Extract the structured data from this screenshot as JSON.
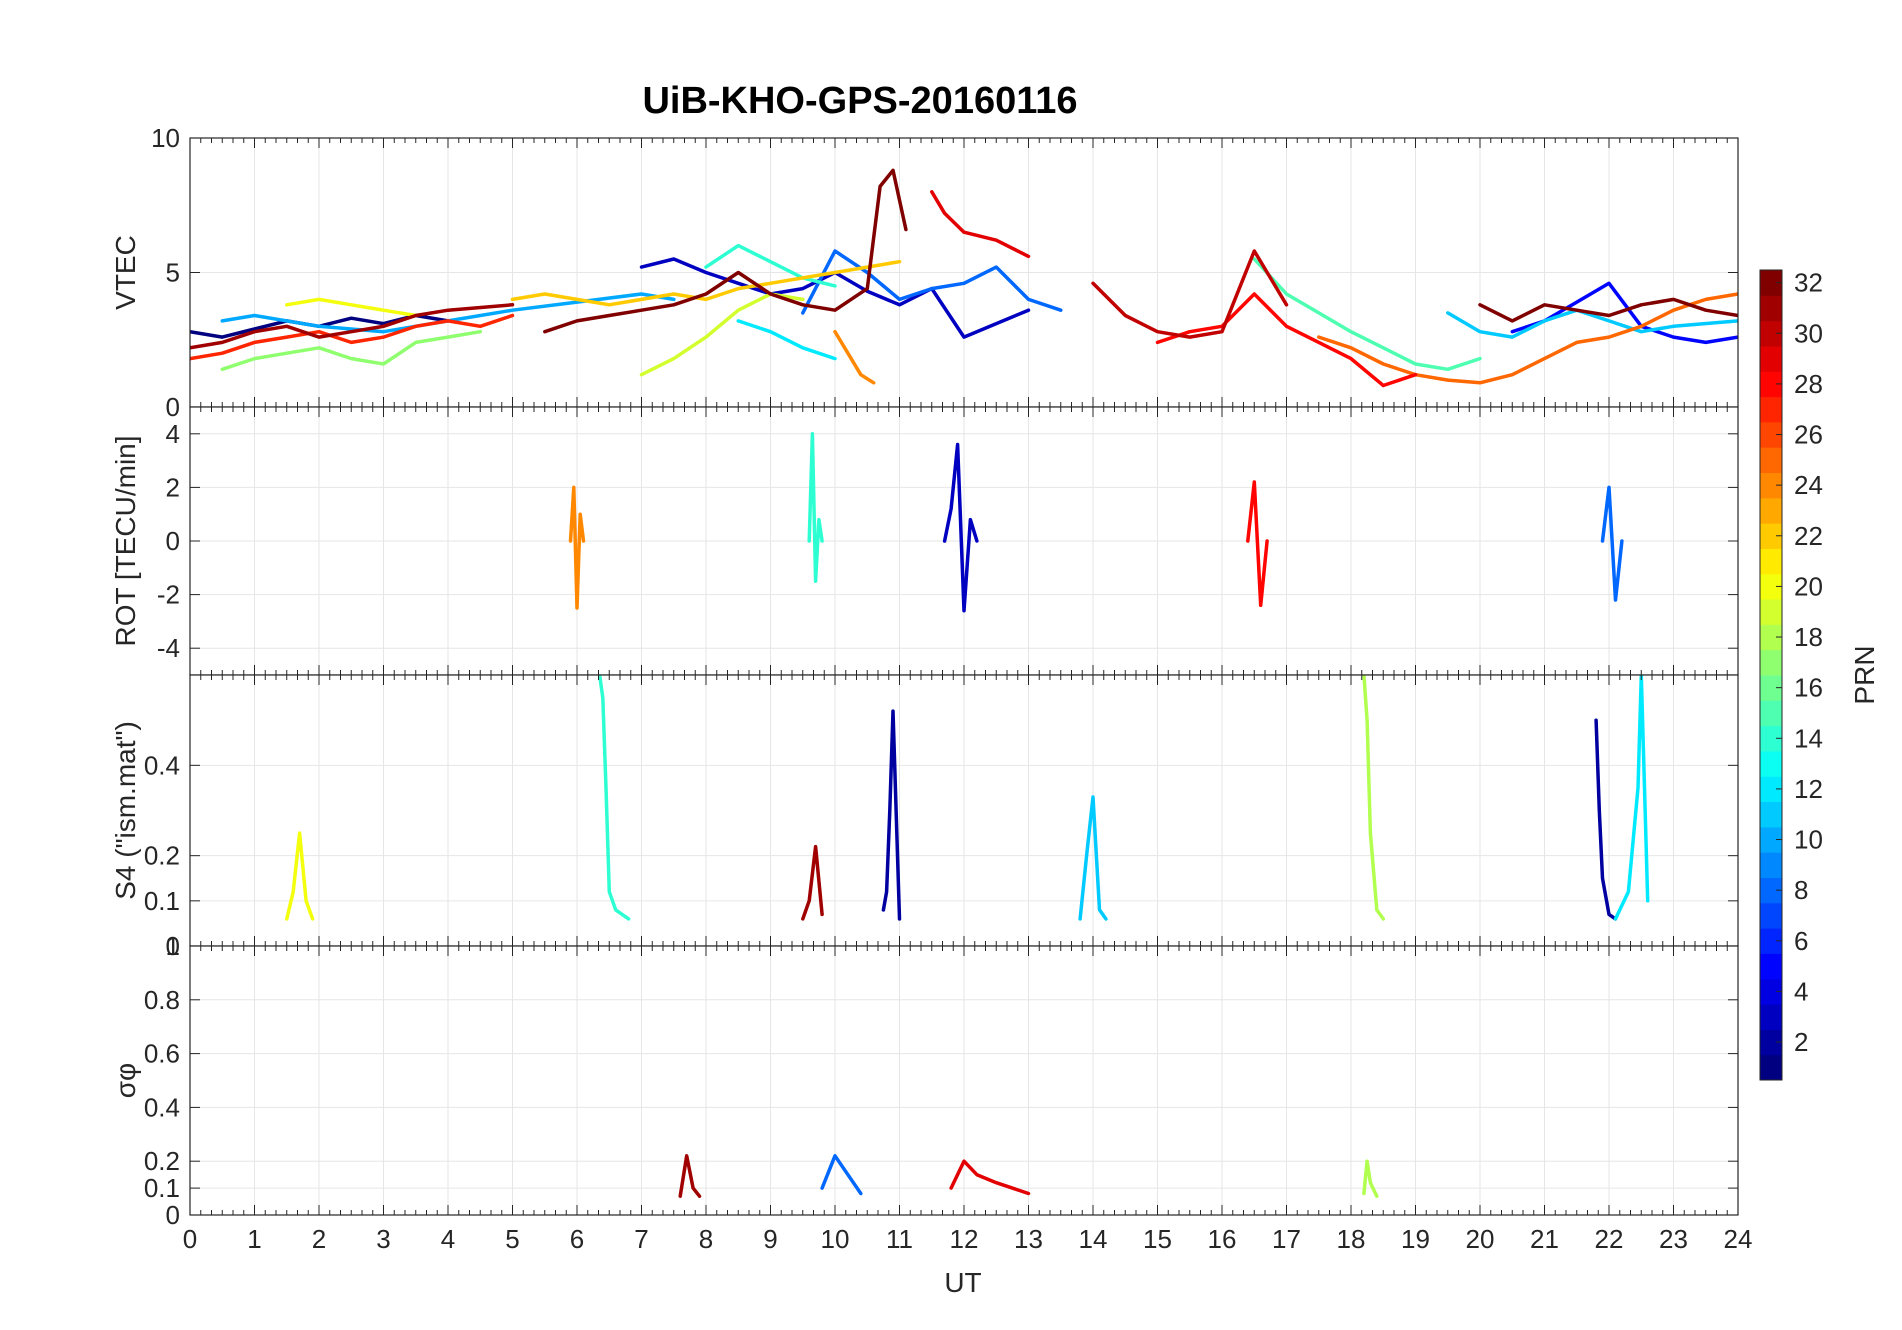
{
  "title": "UiB-KHO-GPS-20160116",
  "chart_data": {
    "type": "line",
    "title": "UiB-KHO-GPS-20160116",
    "xlabel": "UT",
    "x_ticks": [
      "0",
      "1",
      "2",
      "3",
      "4",
      "5",
      "6",
      "7",
      "8",
      "9",
      "10",
      "11",
      "12",
      "13",
      "14",
      "15",
      "16",
      "17",
      "18",
      "19",
      "20",
      "21",
      "22",
      "23",
      "24"
    ],
    "xlim": [
      0,
      24
    ],
    "grid": true,
    "colormap": "jet",
    "colorbar": {
      "label": "PRN",
      "range": [
        1,
        32
      ],
      "ticks": [
        "2",
        "4",
        "6",
        "8",
        "10",
        "12",
        "14",
        "16",
        "18",
        "20",
        "22",
        "24",
        "26",
        "28",
        "30",
        "32"
      ]
    },
    "panels": [
      {
        "id": "vtec",
        "ylabel": "VTEC",
        "ylim": [
          0,
          10
        ],
        "y_ticks": [
          "0",
          "5",
          "10"
        ],
        "series": [
          {
            "prn": 1,
            "x": [
              0,
              0.5,
              1,
              1.5,
              2,
              2.5,
              3,
              3.5,
              4
            ],
            "y": [
              2.8,
              2.6,
              2.9,
              3.2,
              3.0,
              3.3,
              3.1,
              3.4,
              3.2
            ]
          },
          {
            "prn": 3,
            "x": [
              7,
              7.5,
              8,
              8.5,
              9,
              9.5,
              10,
              10.5,
              11,
              11.5,
              12,
              12.5,
              13
            ],
            "y": [
              5.2,
              5.5,
              5.0,
              4.6,
              4.2,
              4.4,
              5.0,
              4.3,
              3.8,
              4.4,
              2.6,
              3.1,
              3.6
            ]
          },
          {
            "prn": 5,
            "x": [
              20.5,
              21,
              21.5,
              22,
              22.5,
              23,
              23.5,
              24
            ],
            "y": [
              2.8,
              3.2,
              3.9,
              4.6,
              3.0,
              2.6,
              2.4,
              2.6
            ]
          },
          {
            "prn": 8,
            "x": [
              9.5,
              10,
              10.5,
              11,
              11.5,
              12,
              12.5,
              13,
              13.5
            ],
            "y": [
              3.5,
              5.8,
              5.0,
              4.0,
              4.4,
              4.6,
              5.2,
              4.0,
              3.6
            ]
          },
          {
            "prn": 10,
            "x": [
              0.5,
              1,
              2,
              3,
              4,
              5,
              6,
              7,
              7.5
            ],
            "y": [
              3.2,
              3.4,
              3.0,
              2.8,
              3.2,
              3.6,
              3.9,
              4.2,
              4.0
            ]
          },
          {
            "prn": 11,
            "x": [
              19.5,
              20,
              20.5,
              21,
              21.5,
              22,
              22.5,
              23,
              24
            ],
            "y": [
              3.5,
              2.8,
              2.6,
              3.2,
              3.6,
              3.2,
              2.8,
              3.0,
              3.2
            ]
          },
          {
            "prn": 12,
            "x": [
              8.5,
              9,
              9.5,
              10
            ],
            "y": [
              3.2,
              2.8,
              2.2,
              1.8
            ]
          },
          {
            "prn": 14,
            "x": [
              8,
              8.5,
              9,
              9.5,
              10
            ],
            "y": [
              5.2,
              6.0,
              5.4,
              4.8,
              4.5
            ]
          },
          {
            "prn": 15,
            "x": [
              16.5,
              17,
              17.5,
              18,
              18.5,
              19,
              19.5,
              20
            ],
            "y": [
              5.5,
              4.2,
              3.5,
              2.8,
              2.2,
              1.6,
              1.4,
              1.8
            ]
          },
          {
            "prn": 17,
            "x": [
              0.5,
              1,
              1.5,
              2,
              2.5,
              3,
              3.5,
              4,
              4.5
            ],
            "y": [
              1.4,
              1.8,
              2.0,
              2.2,
              1.8,
              1.6,
              2.4,
              2.6,
              2.8
            ]
          },
          {
            "prn": 19,
            "x": [
              7,
              7.5,
              8,
              8.5,
              9,
              9.5
            ],
            "y": [
              1.2,
              1.8,
              2.6,
              3.6,
              4.2,
              4.0
            ]
          },
          {
            "prn": 20,
            "x": [
              1.5,
              2,
              2.5,
              3,
              3.5
            ],
            "y": [
              3.8,
              4.0,
              3.8,
              3.6,
              3.4
            ]
          },
          {
            "prn": 22,
            "x": [
              5,
              5.5,
              6,
              6.5,
              7,
              7.5,
              8,
              8.5,
              9,
              9.5,
              10,
              10.5,
              11
            ],
            "y": [
              4.0,
              4.2,
              4.0,
              3.8,
              4.0,
              4.2,
              4.0,
              4.4,
              4.6,
              4.8,
              5.0,
              5.2,
              5.4
            ]
          },
          {
            "prn": 24,
            "x": [
              10,
              10.2,
              10.4,
              10.6
            ],
            "y": [
              2.8,
              2.0,
              1.2,
              0.9
            ]
          },
          {
            "prn": 25,
            "x": [
              17.5,
              18,
              18.5,
              19,
              19.5,
              20,
              20.5,
              21,
              21.5,
              22,
              22.5,
              23,
              23.5,
              24
            ],
            "y": [
              2.6,
              2.2,
              1.6,
              1.2,
              1.0,
              0.9,
              1.2,
              1.8,
              2.4,
              2.6,
              3.0,
              3.6,
              4.0,
              4.2
            ]
          },
          {
            "prn": 27,
            "x": [
              0,
              0.5,
              1,
              1.5,
              2,
              2.5,
              3,
              3.5,
              4,
              4.5,
              5
            ],
            "y": [
              1.8,
              2.0,
              2.4,
              2.6,
              2.8,
              2.4,
              2.6,
              3.0,
              3.2,
              3.0,
              3.4
            ]
          },
          {
            "prn": 28,
            "x": [
              15,
              15.5,
              16,
              16.5,
              17,
              17.5,
              18,
              18.5,
              19
            ],
            "y": [
              2.4,
              2.8,
              3.0,
              4.2,
              3.0,
              2.4,
              1.8,
              0.8,
              1.2
            ]
          },
          {
            "prn": 29,
            "x": [
              11.5,
              11.7,
              12,
              12.5,
              13
            ],
            "y": [
              8.0,
              7.2,
              6.5,
              6.2,
              5.6
            ]
          },
          {
            "prn": 30,
            "x": [
              14,
              14.5,
              15,
              15.5,
              16,
              16.5,
              17
            ],
            "y": [
              4.6,
              3.4,
              2.8,
              2.6,
              2.8,
              5.8,
              3.8
            ]
          },
          {
            "prn": 31,
            "x": [
              0,
              0.5,
              1,
              1.5,
              2,
              2.5,
              3,
              3.5,
              4,
              5
            ],
            "y": [
              2.2,
              2.4,
              2.8,
              3.0,
              2.6,
              2.8,
              3.0,
              3.4,
              3.6,
              3.8
            ]
          },
          {
            "prn": 32,
            "x": [
              5.5,
              6,
              6.5,
              7,
              7.5,
              8,
              8.5,
              9,
              9.5,
              10,
              10.5,
              10.7,
              10.9,
              11.1
            ],
            "y": [
              2.8,
              3.2,
              3.4,
              3.6,
              3.8,
              4.2,
              5.0,
              4.2,
              3.8,
              3.6,
              4.4,
              8.2,
              8.8,
              6.6
            ]
          },
          {
            "prn": 32,
            "x": [
              20,
              20.5,
              21,
              21.5,
              22,
              22.5,
              23,
              23.5,
              24
            ],
            "y": [
              3.8,
              3.2,
              3.8,
              3.6,
              3.4,
              3.8,
              4.0,
              3.6,
              3.4
            ]
          }
        ]
      },
      {
        "id": "rot",
        "ylabel": "ROT [TECU/min]",
        "ylim": [
          -5,
          5
        ],
        "y_ticks": [
          "-4",
          "-2",
          "0",
          "2",
          "4"
        ],
        "series": [
          {
            "prn": 3,
            "x": [
              11.7,
              11.8,
              11.9,
              12,
              12.1,
              12.2
            ],
            "y": [
              0,
              1.2,
              3.6,
              -2.6,
              0.8,
              0
            ]
          },
          {
            "prn": 14,
            "x": [
              9.6,
              9.65,
              9.7,
              9.75,
              9.8
            ],
            "y": [
              0,
              4.0,
              -1.5,
              0.8,
              0
            ]
          },
          {
            "prn": 24,
            "x": [
              5.9,
              5.95,
              6.0,
              6.05,
              6.1
            ],
            "y": [
              0,
              2.0,
              -2.5,
              1.0,
              0
            ]
          },
          {
            "prn": 28,
            "x": [
              16.4,
              16.5,
              16.6,
              16.7
            ],
            "y": [
              0,
              2.2,
              -2.4,
              0
            ]
          },
          {
            "prn": 8,
            "x": [
              21.9,
              22,
              22.1,
              22.2
            ],
            "y": [
              0,
              2.0,
              -2.2,
              0
            ]
          }
        ]
      },
      {
        "id": "s4",
        "ylabel": "S4 (\"ism.mat\")",
        "ylim": [
          0,
          0.6
        ],
        "y_ticks": [
          "0",
          "0.1",
          "0.2",
          "0.4"
        ],
        "series": [
          {
            "prn": 14,
            "x": [
              6.35,
              6.4,
              6.45,
              6.5,
              6.6,
              6.8
            ],
            "y": [
              0.6,
              0.55,
              0.35,
              0.12,
              0.08,
              0.06
            ]
          },
          {
            "prn": 2,
            "x": [
              10.75,
              10.8,
              10.85,
              10.9,
              11.0
            ],
            "y": [
              0.08,
              0.12,
              0.3,
              0.52,
              0.06
            ]
          },
          {
            "prn": 11,
            "x": [
              13.8,
              13.9,
              14.0,
              14.1,
              14.2
            ],
            "y": [
              0.06,
              0.2,
              0.33,
              0.08,
              0.06
            ]
          },
          {
            "prn": 18,
            "x": [
              18.2,
              18.25,
              18.3,
              18.4,
              18.5
            ],
            "y": [
              0.6,
              0.5,
              0.25,
              0.08,
              0.06
            ]
          },
          {
            "prn": 2,
            "x": [
              21.8,
              21.85,
              21.9,
              22.0,
              22.1
            ],
            "y": [
              0.5,
              0.3,
              0.15,
              0.07,
              0.06
            ]
          },
          {
            "prn": 12,
            "x": [
              22.1,
              22.3,
              22.45,
              22.5,
              22.6
            ],
            "y": [
              0.06,
              0.12,
              0.35,
              0.6,
              0.1
            ]
          },
          {
            "prn": 20,
            "x": [
              1.5,
              1.6,
              1.7,
              1.8,
              1.9
            ],
            "y": [
              0.06,
              0.12,
              0.25,
              0.1,
              0.06
            ]
          },
          {
            "prn": 31,
            "x": [
              9.5,
              9.6,
              9.7,
              9.8
            ],
            "y": [
              0.06,
              0.1,
              0.22,
              0.07
            ]
          }
        ]
      },
      {
        "id": "sigma_phi",
        "ylabel": "σφ",
        "ylim": [
          0,
          1
        ],
        "y_ticks": [
          "0",
          "0.1",
          "0.2",
          "0.4",
          "0.6",
          "0.8",
          "1"
        ],
        "series": [
          {
            "prn": 8,
            "x": [
              9.8,
              10,
              10.2,
              10.4
            ],
            "y": [
              0.1,
              0.22,
              0.15,
              0.08
            ]
          },
          {
            "prn": 18,
            "x": [
              18.2,
              18.25,
              18.3,
              18.4
            ],
            "y": [
              0.08,
              0.2,
              0.12,
              0.07
            ]
          },
          {
            "prn": 29,
            "x": [
              11.8,
              12,
              12.2,
              12.5,
              13
            ],
            "y": [
              0.1,
              0.2,
              0.15,
              0.12,
              0.08
            ]
          },
          {
            "prn": 31,
            "x": [
              7.6,
              7.7,
              7.8,
              7.9
            ],
            "y": [
              0.07,
              0.22,
              0.1,
              0.07
            ]
          }
        ]
      }
    ]
  },
  "colors": {
    "axis": "#262626",
    "grid": "#e6e6e6",
    "background": "#ffffff"
  }
}
